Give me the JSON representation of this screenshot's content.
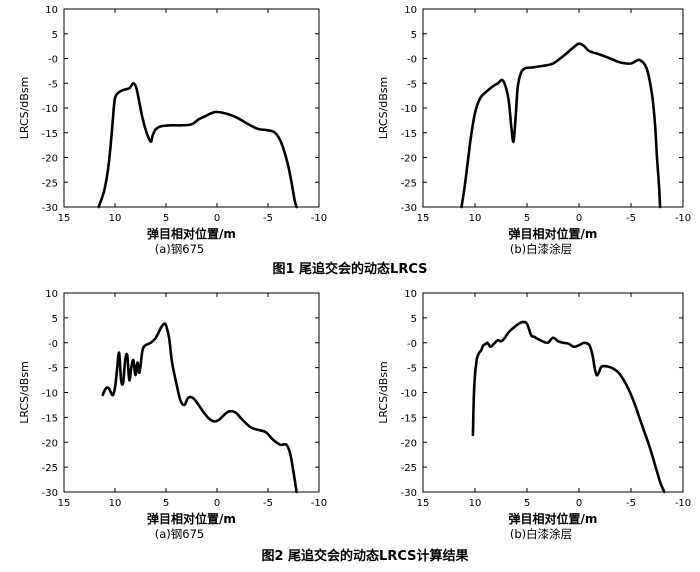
{
  "figures": [
    {
      "caption": "图1 尾追交会的动态LRCS"
    },
    {
      "caption": "图2 尾追交会的动态LRCS计算结果"
    }
  ],
  "chart_data": [
    {
      "type": "line",
      "subtitle": "(a)钢675",
      "xlabel": "弹目相对位置/m",
      "ylabel": "LRCS/dBsm",
      "xlim": [
        15,
        -10
      ],
      "ylim": [
        -30,
        10
      ],
      "xticks": [
        15,
        10,
        5,
        0,
        -5,
        -10
      ],
      "yticks": [
        10,
        5,
        0,
        -5,
        -10,
        -15,
        -20,
        -25,
        -30
      ],
      "xtick_labels": [
        "15",
        "10",
        "5",
        "0",
        "-5",
        "-10"
      ],
      "ytick_labels": [
        "10",
        "5",
        "-0",
        "-5",
        "-10",
        "-15",
        "-20",
        "-25",
        "-30"
      ],
      "series": [
        {
          "x": [
            11.6,
            11.1,
            10.8,
            10.6,
            10.4,
            10.2,
            10.0,
            9.6,
            9.1,
            8.6,
            8.2,
            7.9,
            7.6,
            7.3,
            6.9,
            6.5,
            6.3,
            6.0,
            5.5,
            4.5,
            3.5,
            2.5,
            1.8,
            1.0,
            0.5,
            0.0,
            -1.0,
            -2.0,
            -3.0,
            -4.0,
            -5.0,
            -5.7,
            -6.3,
            -6.9,
            -7.3,
            -7.6,
            -7.8
          ],
          "y": [
            -30,
            -27,
            -24,
            -21,
            -17,
            -12,
            -8,
            -6.8,
            -6.3,
            -6.0,
            -5.0,
            -6.0,
            -9.0,
            -12.0,
            -15.0,
            -16.8,
            -15.5,
            -14.3,
            -13.7,
            -13.5,
            -13.5,
            -13.3,
            -12.3,
            -11.5,
            -11.0,
            -10.8,
            -11.2,
            -12.0,
            -13.2,
            -14.2,
            -14.5,
            -15.0,
            -17.0,
            -21.0,
            -25.0,
            -28.5,
            -30
          ]
        }
      ]
    },
    {
      "type": "line",
      "subtitle": "(b)白漆涂层",
      "xlabel": "弹目相对位置/m",
      "ylabel": "LRCS/dBsm",
      "xlim": [
        15,
        -10
      ],
      "ylim": [
        -30,
        10
      ],
      "xticks": [
        15,
        10,
        5,
        0,
        -5,
        -10
      ],
      "yticks": [
        10,
        5,
        0,
        -5,
        -10,
        -15,
        -20,
        -25,
        -30
      ],
      "xtick_labels": [
        "15",
        "10",
        "5",
        "0",
        "-5",
        "-10"
      ],
      "ytick_labels": [
        "10",
        "5",
        "-0",
        "-5",
        "-10",
        "-15",
        "-20",
        "-25",
        "-30"
      ],
      "series": [
        {
          "x": [
            11.3,
            11.0,
            10.7,
            10.4,
            10.0,
            9.5,
            8.8,
            8.2,
            7.8,
            7.3,
            6.8,
            6.5,
            6.3,
            6.1,
            5.9,
            5.6,
            5.2,
            4.5,
            3.5,
            2.5,
            1.5,
            0.5,
            0.0,
            -0.5,
            -1.0,
            -2.0,
            -3.0,
            -4.0,
            -5.0,
            -5.8,
            -6.5,
            -7.0,
            -7.3,
            -7.5,
            -7.7,
            -7.8
          ],
          "y": [
            -30,
            -26,
            -21,
            -16,
            -11,
            -8.0,
            -6.5,
            -5.5,
            -5.0,
            -4.5,
            -8.0,
            -14.0,
            -16.8,
            -12.0,
            -6.0,
            -3.0,
            -2.0,
            -1.8,
            -1.5,
            -1.0,
            0.5,
            2.3,
            3.0,
            2.5,
            1.5,
            0.8,
            0.0,
            -0.8,
            -1.0,
            -0.3,
            -2.0,
            -7.0,
            -13.0,
            -20.0,
            -26.0,
            -30
          ]
        }
      ]
    },
    {
      "type": "line",
      "subtitle": "(a)钢675",
      "xlabel": "弹目相对位置/m",
      "ylabel": "LRCS/dBsm",
      "xlim": [
        15,
        -10
      ],
      "ylim": [
        -30,
        10
      ],
      "xticks": [
        15,
        10,
        5,
        0,
        -5,
        -10
      ],
      "yticks": [
        10,
        5,
        0,
        -5,
        -10,
        -15,
        -20,
        -25,
        -30
      ],
      "xtick_labels": [
        "15",
        "10",
        "5",
        "0",
        "-5",
        "-10"
      ],
      "ytick_labels": [
        "10",
        "5",
        "-0",
        "-5",
        "-10",
        "-15",
        "-20",
        "-25",
        "-30"
      ],
      "series": [
        {
          "x": [
            11.2,
            11.0,
            10.8,
            10.6,
            10.4,
            10.2,
            10.0,
            9.8,
            9.6,
            9.4,
            9.2,
            9.0,
            8.8,
            8.6,
            8.4,
            8.2,
            8.0,
            7.8,
            7.6,
            7.3,
            7.0,
            6.5,
            6.0,
            5.5,
            5.2,
            5.0,
            4.7,
            4.4,
            4.0,
            3.6,
            3.2,
            2.8,
            2.3,
            1.8,
            1.3,
            0.8,
            0.3,
            -0.2,
            -0.7,
            -1.2,
            -1.8,
            -2.5,
            -3.3,
            -4.0,
            -4.8,
            -5.5,
            -6.2,
            -6.8,
            -7.2,
            -7.5,
            -7.8
          ],
          "y": [
            -10.5,
            -9.5,
            -9.0,
            -9.2,
            -10.0,
            -10.5,
            -9.0,
            -5.5,
            -2.0,
            -7.5,
            -8.0,
            -3.5,
            -2.5,
            -7.5,
            -5.0,
            -3.5,
            -6.5,
            -4.0,
            -6.0,
            -1.5,
            -0.5,
            0.0,
            1.0,
            3.0,
            3.8,
            3.5,
            1.0,
            -4.0,
            -8.0,
            -11.5,
            -12.5,
            -11.0,
            -11.2,
            -12.5,
            -14.0,
            -15.2,
            -15.8,
            -15.5,
            -14.5,
            -13.8,
            -14.0,
            -15.5,
            -17.0,
            -17.5,
            -18.0,
            -19.5,
            -20.5,
            -20.5,
            -22.5,
            -26.0,
            -30
          ]
        }
      ]
    },
    {
      "type": "line",
      "subtitle": "(b)白漆涂层",
      "xlabel": "弹目相对位置/m",
      "ylabel": "LRCS/dBsm",
      "xlim": [
        15,
        -10
      ],
      "ylim": [
        -30,
        10
      ],
      "xticks": [
        15,
        10,
        5,
        0,
        -5,
        -10
      ],
      "yticks": [
        10,
        5,
        0,
        -5,
        -10,
        -15,
        -20,
        -25,
        -30
      ],
      "xtick_labels": [
        "15",
        "10",
        "5",
        "0",
        "-5",
        "-10"
      ],
      "ytick_labels": [
        "10",
        "5",
        "-0",
        "-5",
        "-10",
        "-15",
        "-20",
        "-25",
        "-30"
      ],
      "series": [
        {
          "x": [
            10.2,
            10.15,
            10.1,
            10.0,
            9.9,
            9.8,
            9.6,
            9.4,
            9.2,
            9.0,
            8.8,
            8.5,
            8.1,
            7.8,
            7.5,
            7.2,
            6.8,
            6.3,
            5.8,
            5.4,
            5.0,
            4.6,
            4.3,
            4.0,
            3.5,
            3.0,
            2.5,
            2.0,
            1.5,
            1.0,
            0.5,
            0.0,
            -0.5,
            -1.0,
            -1.3,
            -1.5,
            -1.7,
            -1.9,
            -2.1,
            -2.3,
            -2.8,
            -3.3,
            -3.8,
            -4.3,
            -4.8,
            -5.3,
            -5.8,
            -6.3,
            -6.8,
            -7.3,
            -7.8,
            -8.2
          ],
          "y": [
            -18.5,
            -14.0,
            -10.0,
            -6.5,
            -4.5,
            -3.0,
            -2.0,
            -1.5,
            -0.5,
            -0.3,
            0.0,
            -0.8,
            0.0,
            0.5,
            0.3,
            0.8,
            2.0,
            3.0,
            3.8,
            4.2,
            3.8,
            1.5,
            1.2,
            0.8,
            0.3,
            0.0,
            1.0,
            0.3,
            0.0,
            -0.2,
            -0.8,
            -0.5,
            0.0,
            -0.5,
            -2.5,
            -5.0,
            -6.5,
            -6.0,
            -5.0,
            -4.7,
            -4.8,
            -5.2,
            -6.0,
            -7.5,
            -9.5,
            -12.0,
            -15.0,
            -18.0,
            -21.0,
            -24.5,
            -28.0,
            -30
          ]
        }
      ]
    }
  ]
}
